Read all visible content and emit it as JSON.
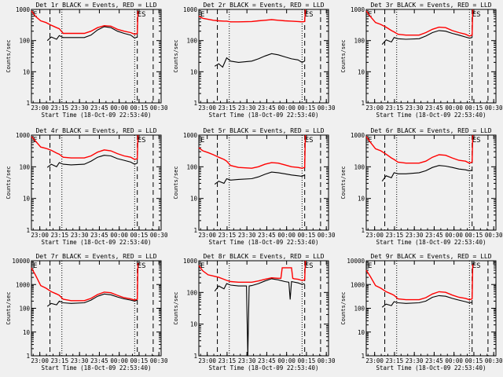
{
  "colors": {
    "background": "#f0f0f0",
    "events": "#000000",
    "lld": "#ff0000",
    "axis": "#000000"
  },
  "shared": {
    "xlabel": "Start Time (18-Oct-09 22:53:40)",
    "ylabel": "Counts/sec",
    "x_tick_labels": [
      "23:00",
      "23:15",
      "23:30",
      "23:45",
      "00:00",
      "00:15",
      "00:30"
    ],
    "x_tick_minutes": [
      6.33,
      21.33,
      36.33,
      51.33,
      66.33,
      81.33,
      96.33
    ],
    "xlim_minutes": [
      0,
      98
    ],
    "marker_label_start": "E",
    "marker_label_end": "ES",
    "dashed_lines_minutes": [
      14,
      80,
      92
    ],
    "dotted_lines_minutes": [
      23,
      78
    ]
  },
  "chart_data": [
    {
      "type": "line",
      "title": "Det 1r BLACK = Events, RED = LLD",
      "yscale": "log",
      "ylim": [
        1,
        1000
      ],
      "y_tick_labels": [
        "1",
        "10",
        "100",
        "1000"
      ],
      "series": [
        {
          "key": "black",
          "x": [
            0,
            5,
            11,
            12,
            15,
            19,
            21,
            24,
            30,
            40,
            45,
            50,
            55,
            60,
            65,
            70,
            75,
            78,
            80,
            80.5
          ],
          "y": [
            null,
            null,
            null,
            100,
            130,
            110,
            145,
            125,
            125,
            125,
            150,
            220,
            280,
            260,
            200,
            170,
            150,
            120,
            130,
            null
          ]
        },
        {
          "key": "red",
          "x": [
            0,
            3,
            7,
            11,
            15,
            19,
            21,
            24,
            30,
            40,
            45,
            50,
            55,
            60,
            65,
            70,
            75,
            78,
            80,
            80.5
          ],
          "y": [
            900,
            600,
            430,
            380,
            310,
            260,
            240,
            170,
            170,
            170,
            200,
            260,
            300,
            290,
            230,
            200,
            180,
            160,
            170,
            900
          ]
        }
      ]
    },
    {
      "type": "line",
      "title": "Det 2r BLACK = Events, RED = LLD",
      "yscale": "log",
      "ylim": [
        1,
        1000
      ],
      "y_tick_labels": [
        "1",
        "10",
        "100",
        "1000"
      ],
      "series": [
        {
          "key": "black",
          "x": [
            0,
            11,
            12,
            15,
            18,
            21,
            24,
            30,
            40,
            45,
            50,
            55,
            60,
            65,
            70,
            75,
            78,
            80,
            80.5
          ],
          "y": [
            null,
            null,
            15,
            18,
            14,
            28,
            22,
            20,
            22,
            26,
            32,
            38,
            35,
            30,
            26,
            24,
            20,
            22,
            null
          ]
        },
        {
          "key": "red",
          "x": [
            0,
            3,
            7,
            11,
            15,
            19,
            21,
            24,
            30,
            40,
            45,
            50,
            55,
            60,
            65,
            70,
            75,
            78,
            80,
            80.5
          ],
          "y": [
            600,
            520,
            480,
            450,
            430,
            420,
            420,
            400,
            400,
            410,
            430,
            450,
            470,
            450,
            430,
            420,
            410,
            400,
            410,
            1000
          ]
        }
      ]
    },
    {
      "type": "line",
      "title": "Det 3r BLACK = Events, RED = LLD",
      "yscale": "log",
      "ylim": [
        1,
        1000
      ],
      "y_tick_labels": [
        "1",
        "10",
        "100",
        "1000"
      ],
      "series": [
        {
          "key": "black",
          "x": [
            0,
            12,
            15,
            19,
            21,
            24,
            30,
            40,
            45,
            50,
            55,
            60,
            65,
            70,
            75,
            78,
            80,
            80.5
          ],
          "y": [
            null,
            75,
            105,
            90,
            125,
            115,
            110,
            115,
            140,
            180,
            210,
            200,
            170,
            150,
            130,
            120,
            125,
            null
          ]
        },
        {
          "key": "red",
          "x": [
            0,
            3,
            7,
            11,
            15,
            19,
            21,
            24,
            30,
            40,
            45,
            50,
            55,
            60,
            65,
            70,
            75,
            78,
            80,
            80.5
          ],
          "y": [
            900,
            600,
            380,
            330,
            270,
            210,
            190,
            160,
            150,
            150,
            180,
            230,
            270,
            260,
            210,
            180,
            160,
            140,
            150,
            1000
          ]
        }
      ]
    },
    {
      "type": "line",
      "title": "Det 4r BLACK = Events, RED = LLD",
      "yscale": "log",
      "ylim": [
        1,
        1000
      ],
      "y_tick_labels": [
        "1",
        "10",
        "100",
        "1000"
      ],
      "series": [
        {
          "key": "black",
          "x": [
            0,
            12,
            15,
            19,
            21,
            24,
            30,
            40,
            45,
            50,
            55,
            60,
            65,
            70,
            75,
            78,
            80,
            80.5
          ],
          "y": [
            null,
            95,
            120,
            100,
            135,
            120,
            115,
            120,
            150,
            200,
            230,
            220,
            180,
            160,
            140,
            120,
            130,
            null
          ]
        },
        {
          "key": "red",
          "x": [
            0,
            3,
            7,
            11,
            15,
            19,
            21,
            24,
            30,
            40,
            45,
            50,
            55,
            60,
            65,
            70,
            75,
            78,
            80,
            80.5
          ],
          "y": [
            900,
            650,
            420,
            380,
            330,
            270,
            250,
            200,
            190,
            190,
            220,
            290,
            340,
            320,
            260,
            220,
            200,
            170,
            180,
            1000
          ]
        }
      ]
    },
    {
      "type": "line",
      "title": "Det 5r BLACK = Events, RED = LLD",
      "yscale": "log",
      "ylim": [
        1,
        1000
      ],
      "y_tick_labels": [
        "1",
        "10",
        "100",
        "1000"
      ],
      "series": [
        {
          "key": "black",
          "x": [
            0,
            11,
            12,
            15,
            19,
            21,
            24,
            30,
            40,
            45,
            50,
            55,
            60,
            65,
            70,
            75,
            78,
            80,
            80.5
          ],
          "y": [
            null,
            null,
            28,
            35,
            30,
            42,
            38,
            40,
            42,
            48,
            58,
            68,
            65,
            60,
            55,
            52,
            50,
            55,
            null
          ]
        },
        {
          "key": "red",
          "x": [
            0,
            3,
            7,
            11,
            15,
            19,
            21,
            24,
            30,
            40,
            45,
            50,
            55,
            60,
            65,
            70,
            75,
            78,
            80,
            80.5
          ],
          "y": [
            400,
            320,
            280,
            240,
            200,
            170,
            150,
            110,
            95,
            90,
            100,
            120,
            135,
            130,
            115,
            100,
            95,
            90,
            95,
            1000
          ]
        }
      ]
    },
    {
      "type": "line",
      "title": "Det 6r BLACK = Events, RED = LLD",
      "yscale": "log",
      "ylim": [
        1,
        1000
      ],
      "y_tick_labels": [
        "1",
        "10",
        "100",
        "1000"
      ],
      "series": [
        {
          "key": "black",
          "x": [
            0,
            12,
            15,
            19,
            21,
            24,
            30,
            40,
            45,
            50,
            55,
            60,
            65,
            70,
            75,
            78,
            80,
            80.5
          ],
          "y": [
            null,
            35,
            52,
            45,
            65,
            60,
            60,
            65,
            75,
            95,
            110,
            105,
            95,
            85,
            80,
            75,
            78,
            null
          ]
        },
        {
          "key": "red",
          "x": [
            0,
            3,
            7,
            11,
            15,
            19,
            21,
            24,
            30,
            40,
            45,
            50,
            55,
            60,
            65,
            70,
            75,
            78,
            80,
            80.5
          ],
          "y": [
            900,
            600,
            370,
            320,
            250,
            190,
            170,
            140,
            130,
            130,
            150,
            200,
            240,
            230,
            190,
            160,
            150,
            130,
            140,
            1000
          ]
        }
      ]
    },
    {
      "type": "line",
      "title": "Det 7r BLACK = Events, RED = LLD",
      "yscale": "log",
      "ylim": [
        1,
        10000
      ],
      "y_tick_labels": [
        "1",
        "10",
        "100",
        "1000",
        "10000"
      ],
      "series": [
        {
          "key": "black",
          "x": [
            0,
            12,
            15,
            19,
            21,
            24,
            30,
            40,
            45,
            50,
            55,
            60,
            65,
            70,
            75,
            78,
            80,
            80.5
          ],
          "y": [
            null,
            120,
            160,
            140,
            200,
            170,
            160,
            170,
            220,
            320,
            400,
            370,
            300,
            250,
            220,
            200,
            220,
            null
          ]
        },
        {
          "key": "red",
          "x": [
            0,
            3,
            7,
            11,
            15,
            19,
            21,
            24,
            30,
            40,
            45,
            50,
            55,
            60,
            65,
            70,
            75,
            78,
            80,
            80.5
          ],
          "y": [
            5000,
            2500,
            900,
            700,
            500,
            400,
            350,
            240,
            210,
            210,
            260,
            380,
            480,
            450,
            350,
            280,
            250,
            220,
            240,
            8000
          ]
        }
      ]
    },
    {
      "type": "line",
      "title": "Det 8r BLACK = Events, RED = LLD",
      "yscale": "log",
      "ylim": [
        1,
        1000
      ],
      "y_tick_labels": [
        "1",
        "10",
        "100",
        "1000"
      ],
      "series": [
        {
          "key": "black",
          "x": [
            0,
            11,
            12,
            15,
            19,
            21,
            24,
            30,
            36,
            37,
            38,
            40,
            45,
            50,
            55,
            60,
            65,
            68,
            69,
            70,
            75,
            78,
            80,
            80.5
          ],
          "y": [
            null,
            null,
            110,
            160,
            130,
            190,
            170,
            160,
            160,
            1,
            160,
            165,
            190,
            230,
            270,
            250,
            220,
            210,
            60,
            220,
            200,
            180,
            190,
            null
          ]
        },
        {
          "key": "red",
          "x": [
            0,
            3,
            7,
            11,
            15,
            19,
            21,
            24,
            30,
            40,
            45,
            50,
            55,
            60,
            62,
            63,
            70,
            71,
            72,
            75,
            78,
            80,
            80.5
          ],
          "y": [
            700,
            480,
            360,
            330,
            300,
            260,
            240,
            220,
            210,
            210,
            230,
            260,
            290,
            280,
            280,
            600,
            600,
            280,
            270,
            260,
            240,
            250,
            1000
          ]
        }
      ]
    },
    {
      "type": "line",
      "title": "Det 9r BLACK = Events, RED = LLD",
      "yscale": "log",
      "ylim": [
        1,
        10000
      ],
      "y_tick_labels": [
        "1",
        "10",
        "100",
        "1000",
        "10000"
      ],
      "series": [
        {
          "key": "black",
          "x": [
            0,
            12,
            15,
            19,
            21,
            24,
            30,
            40,
            45,
            50,
            55,
            60,
            65,
            70,
            75,
            78,
            80,
            80.5
          ],
          "y": [
            null,
            110,
            150,
            130,
            190,
            170,
            160,
            170,
            200,
            290,
            340,
            320,
            260,
            220,
            190,
            170,
            180,
            null
          ]
        },
        {
          "key": "red",
          "x": [
            0,
            3,
            7,
            11,
            15,
            19,
            21,
            24,
            30,
            40,
            45,
            50,
            55,
            60,
            65,
            70,
            75,
            78,
            80,
            80.5
          ],
          "y": [
            4000,
            2200,
            900,
            700,
            500,
            400,
            350,
            250,
            230,
            230,
            280,
            400,
            500,
            470,
            360,
            290,
            260,
            230,
            250,
            7000
          ]
        }
      ]
    }
  ]
}
